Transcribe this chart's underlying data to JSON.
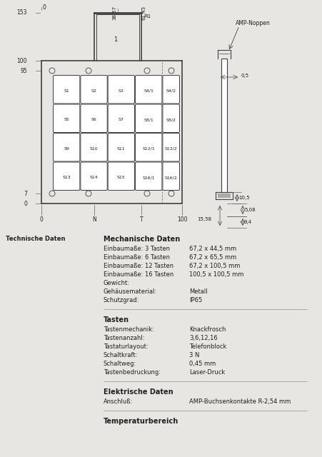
{
  "bg_color": "#e8e6e3",
  "diagram_bg": "#ffffff",
  "line_color": "#404040",
  "text_color": "#202020",
  "title_left": "Technische Daten",
  "section1_title": "Mechanische Daten",
  "section1_lines": [
    [
      "Einbaumaße: 3 Tasten",
      "67,2 x 44,5 mm"
    ],
    [
      "Einbaumaße: 6 Tasten",
      "67,2 x 65,5 mm"
    ],
    [
      "Einbaumaße: 12 Tasten",
      "67,2 x 100,5 mm"
    ],
    [
      "Einbaumaße: 16 Tasten",
      "100,5 x 100,5 mm"
    ],
    [
      "Gewicht:",
      ""
    ],
    [
      "Gehäusematerial:",
      "Metall"
    ],
    [
      "Schutzgrad:",
      "IP65"
    ]
  ],
  "section2_title": "Tasten",
  "section2_lines": [
    [
      "Tastenmechanik:",
      "Knackfrosch"
    ],
    [
      "Tastenanzahl:",
      "3,6,12,16"
    ],
    [
      "Tastaturlayout:",
      "Telefonblock"
    ],
    [
      "Schaltkraft:",
      "3 N"
    ],
    [
      "Schaltweg:",
      "0,45 mm"
    ],
    [
      "Tastenbedruckung:",
      "Laser-Druck"
    ]
  ],
  "section3_title": "Elektrische Daten",
  "section3_lines": [
    [
      "Anschluß:",
      "AMP-Buchsenkontakte R-2,54 mm"
    ]
  ],
  "section4_title": "Temperaturbereich",
  "keys": [
    [
      "S1",
      "S2",
      "S3",
      "S4/1",
      "S4/2"
    ],
    [
      "S5",
      "S6",
      "S7",
      "S8/1",
      "S8/2"
    ],
    [
      "S9",
      "S10",
      "S11",
      "S12/1",
      "S12/2"
    ],
    [
      "S13",
      "S14",
      "S15",
      "S16/1",
      "S16/2"
    ]
  ]
}
